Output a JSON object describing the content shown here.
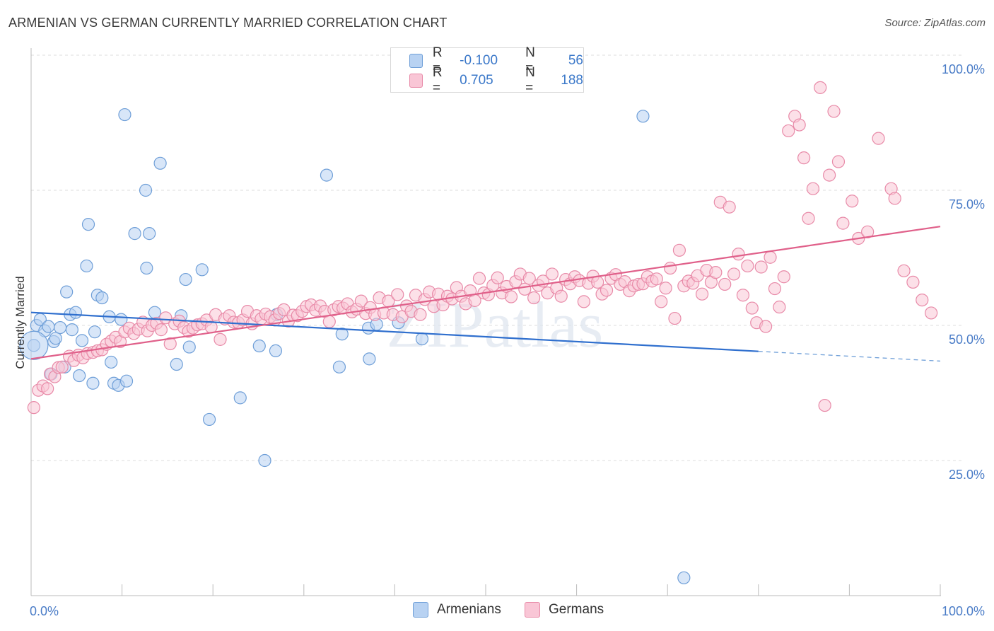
{
  "header": {
    "title": "ARMENIAN VS GERMAN CURRENTLY MARRIED CORRELATION CHART",
    "source": "Source: ZipAtlas.com"
  },
  "legend": {
    "rows": [
      {
        "r_label": "R =",
        "r_value": "-0.100",
        "n_label": "N =",
        "n_value": "56",
        "color": "#b8d2f2",
        "border": "#6f9fd8"
      },
      {
        "r_label": "R =",
        "r_value": "0.705",
        "n_label": "N =",
        "n_value": "188",
        "color": "#f9c6d6",
        "border": "#e88aa8"
      }
    ]
  },
  "bottom_legend": [
    "Armenians",
    "Germans"
  ],
  "watermark": "ZIPatlas",
  "chart_data": {
    "type": "scatter",
    "title": "ARMENIAN VS GERMAN CURRENTLY MARRIED CORRELATION CHART",
    "ylabel": "Currently Married",
    "xlabel": "",
    "xlim": [
      0,
      100
    ],
    "ylim": [
      0,
      100
    ],
    "x_tick_labels": [
      "0.0%",
      "100.0%"
    ],
    "y_tick_labels": [
      "25.0%",
      "50.0%",
      "75.0%",
      "100.0%"
    ],
    "y_ticks": [
      25,
      50,
      75,
      100
    ],
    "grid": "horizontal dashed",
    "legend_position": "top-center",
    "series": [
      {
        "name": "Armenians",
        "color": "#6f9fd8",
        "fill": "#b8d2f2",
        "trend": {
          "x0": 0,
          "y0": 52.4,
          "x1": 80,
          "y1": 45.2,
          "dashed_to": 100,
          "dashed_y": 43.4
        },
        "points": [
          [
            0.3,
            46.3
          ],
          [
            0.6,
            50.0
          ],
          [
            1.0,
            51.1
          ],
          [
            1.5,
            49.0
          ],
          [
            1.9,
            49.8
          ],
          [
            2.2,
            41.0
          ],
          [
            2.5,
            47.0
          ],
          [
            2.7,
            47.6
          ],
          [
            3.2,
            49.6
          ],
          [
            3.7,
            42.3
          ],
          [
            3.9,
            56.2
          ],
          [
            4.3,
            52.0
          ],
          [
            4.5,
            49.2
          ],
          [
            4.9,
            52.4
          ],
          [
            5.3,
            40.7
          ],
          [
            5.6,
            47.2
          ],
          [
            6.3,
            68.7
          ],
          [
            6.1,
            61.0
          ],
          [
            6.8,
            39.3
          ],
          [
            7.0,
            48.8
          ],
          [
            7.3,
            55.6
          ],
          [
            7.8,
            55.1
          ],
          [
            8.6,
            51.6
          ],
          [
            8.8,
            43.2
          ],
          [
            9.1,
            39.3
          ],
          [
            9.6,
            38.9
          ],
          [
            9.9,
            51.1
          ],
          [
            10.3,
            89.0
          ],
          [
            10.5,
            39.7
          ],
          [
            11.4,
            67.0
          ],
          [
            12.6,
            75.0
          ],
          [
            12.7,
            60.6
          ],
          [
            13.0,
            67.0
          ],
          [
            13.6,
            52.4
          ],
          [
            14.2,
            80.0
          ],
          [
            16.0,
            42.8
          ],
          [
            16.5,
            51.8
          ],
          [
            17.0,
            58.5
          ],
          [
            17.4,
            46.0
          ],
          [
            18.8,
            60.3
          ],
          [
            19.6,
            32.6
          ],
          [
            23.0,
            36.6
          ],
          [
            25.1,
            46.2
          ],
          [
            25.7,
            25.0
          ],
          [
            26.9,
            45.3
          ],
          [
            27.0,
            52.0
          ],
          [
            32.5,
            77.8
          ],
          [
            33.9,
            42.3
          ],
          [
            34.2,
            48.4
          ],
          [
            37.1,
            49.5
          ],
          [
            37.2,
            43.8
          ],
          [
            38.0,
            50.2
          ],
          [
            40.4,
            50.5
          ],
          [
            43.0,
            47.5
          ],
          [
            67.3,
            88.7
          ],
          [
            71.8,
            3.3
          ]
        ]
      },
      {
        "name": "Germans",
        "color": "#e88aa8",
        "fill": "#f9c6d6",
        "trend": {
          "x0": 0,
          "y0": 43.8,
          "x1": 100,
          "y1": 68.3
        },
        "points": [
          [
            0.3,
            34.8
          ],
          [
            0.8,
            38.0
          ],
          [
            1.3,
            38.8
          ],
          [
            1.8,
            38.3
          ],
          [
            2.1,
            41.0
          ],
          [
            2.6,
            40.5
          ],
          [
            3.0,
            42.2
          ],
          [
            3.4,
            42.3
          ],
          [
            4.2,
            44.3
          ],
          [
            4.7,
            43.5
          ],
          [
            5.2,
            44.5
          ],
          [
            5.7,
            44.0
          ],
          [
            6.2,
            44.8
          ],
          [
            6.8,
            45.0
          ],
          [
            7.3,
            45.3
          ],
          [
            7.8,
            45.5
          ],
          [
            8.3,
            46.5
          ],
          [
            8.8,
            47.1
          ],
          [
            9.3,
            47.8
          ],
          [
            9.8,
            47.0
          ],
          [
            10.3,
            48.8
          ],
          [
            10.8,
            49.5
          ],
          [
            11.3,
            48.5
          ],
          [
            11.8,
            49.3
          ],
          [
            12.3,
            50.6
          ],
          [
            12.8,
            49.0
          ],
          [
            13.3,
            50.0
          ],
          [
            13.8,
            50.4
          ],
          [
            14.3,
            49.2
          ],
          [
            14.8,
            51.4
          ],
          [
            15.3,
            46.6
          ],
          [
            15.8,
            50.3
          ],
          [
            16.3,
            50.8
          ],
          [
            16.8,
            49.6
          ],
          [
            17.3,
            48.9
          ],
          [
            17.8,
            49.5
          ],
          [
            18.3,
            50.1
          ],
          [
            18.8,
            50.3
          ],
          [
            19.3,
            51.0
          ],
          [
            19.8,
            49.7
          ],
          [
            20.3,
            52.0
          ],
          [
            20.8,
            47.4
          ],
          [
            21.3,
            51.2
          ],
          [
            21.8,
            51.8
          ],
          [
            22.3,
            50.6
          ],
          [
            22.8,
            50.5
          ],
          [
            23.3,
            51.0
          ],
          [
            23.8,
            52.6
          ],
          [
            24.3,
            50.3
          ],
          [
            24.8,
            51.8
          ],
          [
            25.3,
            51.2
          ],
          [
            25.8,
            52.1
          ],
          [
            26.3,
            51.6
          ],
          [
            26.8,
            51.0
          ],
          [
            27.3,
            52.2
          ],
          [
            27.8,
            52.9
          ],
          [
            28.3,
            50.8
          ],
          [
            28.8,
            51.9
          ],
          [
            29.3,
            51.8
          ],
          [
            29.8,
            52.6
          ],
          [
            30.3,
            53.5
          ],
          [
            30.8,
            53.8
          ],
          [
            31.3,
            52.8
          ],
          [
            31.8,
            53.6
          ],
          [
            32.3,
            52.6
          ],
          [
            32.8,
            50.7
          ],
          [
            33.3,
            52.9
          ],
          [
            33.8,
            53.5
          ],
          [
            34.3,
            53.2
          ],
          [
            34.8,
            54.0
          ],
          [
            35.3,
            52.5
          ],
          [
            35.8,
            53.0
          ],
          [
            36.3,
            54.5
          ],
          [
            36.8,
            52.2
          ],
          [
            37.3,
            53.3
          ],
          [
            37.8,
            52.0
          ],
          [
            38.3,
            55.1
          ],
          [
            38.8,
            52.3
          ],
          [
            39.3,
            54.5
          ],
          [
            39.8,
            52.0
          ],
          [
            40.3,
            55.7
          ],
          [
            40.8,
            51.6
          ],
          [
            41.3,
            53.6
          ],
          [
            41.8,
            52.6
          ],
          [
            42.3,
            55.6
          ],
          [
            42.8,
            52.0
          ],
          [
            43.3,
            54.8
          ],
          [
            43.8,
            56.2
          ],
          [
            44.3,
            53.5
          ],
          [
            44.8,
            55.8
          ],
          [
            45.3,
            53.8
          ],
          [
            45.8,
            55.4
          ],
          [
            46.3,
            54.9
          ],
          [
            46.8,
            57.0
          ],
          [
            47.3,
            55.4
          ],
          [
            47.8,
            54.0
          ],
          [
            48.3,
            56.4
          ],
          [
            48.8,
            54.6
          ],
          [
            49.3,
            58.7
          ],
          [
            49.8,
            56.0
          ],
          [
            50.3,
            55.7
          ],
          [
            50.8,
            57.4
          ],
          [
            51.3,
            58.8
          ],
          [
            51.8,
            56.0
          ],
          [
            52.3,
            57.2
          ],
          [
            52.8,
            55.3
          ],
          [
            53.3,
            58.1
          ],
          [
            53.8,
            59.5
          ],
          [
            54.3,
            56.7
          ],
          [
            54.8,
            58.7
          ],
          [
            55.3,
            55.1
          ],
          [
            55.8,
            57.4
          ],
          [
            56.3,
            58.2
          ],
          [
            56.8,
            56.0
          ],
          [
            57.3,
            59.5
          ],
          [
            57.8,
            56.9
          ],
          [
            58.3,
            55.4
          ],
          [
            58.8,
            58.5
          ],
          [
            59.3,
            57.7
          ],
          [
            59.8,
            59.0
          ],
          [
            60.3,
            58.3
          ],
          [
            60.8,
            54.4
          ],
          [
            61.3,
            57.8
          ],
          [
            61.8,
            59.1
          ],
          [
            62.3,
            58.0
          ],
          [
            62.8,
            55.8
          ],
          [
            63.3,
            56.5
          ],
          [
            63.8,
            58.7
          ],
          [
            64.3,
            59.4
          ],
          [
            64.8,
            57.6
          ],
          [
            65.3,
            58.1
          ],
          [
            65.8,
            56.4
          ],
          [
            66.3,
            57.3
          ],
          [
            66.8,
            57.6
          ],
          [
            67.3,
            57.7
          ],
          [
            67.8,
            59.0
          ],
          [
            68.3,
            58.2
          ],
          [
            68.8,
            58.6
          ],
          [
            69.3,
            54.4
          ],
          [
            69.8,
            56.9
          ],
          [
            70.3,
            60.6
          ],
          [
            70.8,
            51.3
          ],
          [
            71.3,
            63.9
          ],
          [
            71.8,
            57.3
          ],
          [
            72.3,
            58.2
          ],
          [
            72.8,
            57.8
          ],
          [
            73.3,
            59.2
          ],
          [
            73.8,
            55.8
          ],
          [
            74.3,
            60.2
          ],
          [
            74.8,
            58.0
          ],
          [
            75.3,
            59.8
          ],
          [
            75.8,
            72.8
          ],
          [
            76.3,
            57.6
          ],
          [
            76.8,
            71.9
          ],
          [
            77.3,
            59.5
          ],
          [
            77.8,
            63.2
          ],
          [
            78.3,
            55.6
          ],
          [
            78.8,
            61.0
          ],
          [
            79.3,
            53.2
          ],
          [
            79.8,
            50.5
          ],
          [
            80.3,
            60.8
          ],
          [
            80.8,
            49.8
          ],
          [
            81.3,
            62.6
          ],
          [
            81.8,
            56.8
          ],
          [
            82.3,
            53.4
          ],
          [
            82.8,
            59.0
          ],
          [
            83.3,
            86.0
          ],
          [
            84.0,
            88.7
          ],
          [
            84.5,
            87.1
          ],
          [
            85.0,
            81.0
          ],
          [
            85.5,
            69.8
          ],
          [
            86.0,
            75.3
          ],
          [
            86.8,
            94.0
          ],
          [
            87.3,
            35.2
          ],
          [
            87.8,
            77.8
          ],
          [
            88.3,
            89.6
          ],
          [
            88.8,
            80.3
          ],
          [
            89.3,
            68.9
          ],
          [
            90.3,
            73.0
          ],
          [
            91.0,
            66.1
          ],
          [
            92.0,
            67.3
          ],
          [
            93.2,
            84.6
          ],
          [
            94.6,
            75.3
          ],
          [
            95.0,
            73.5
          ],
          [
            96.0,
            60.1
          ],
          [
            97.0,
            58.0
          ],
          [
            98.0,
            54.7
          ],
          [
            99.0,
            52.3
          ]
        ]
      }
    ]
  }
}
